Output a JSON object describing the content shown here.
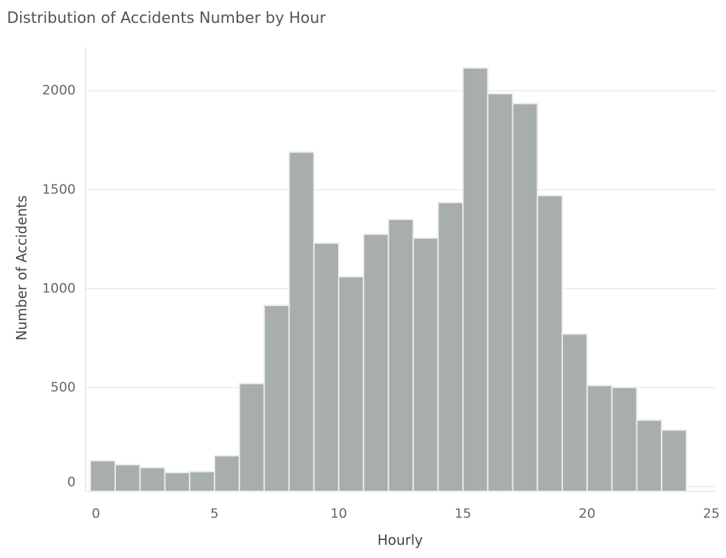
{
  "chart_data": {
    "type": "bar",
    "title": "Distribution of Accidents Number by Hour",
    "xlabel": "Hourly",
    "ylabel": "Number of Accidents",
    "bin_edges": [
      0,
      1,
      2,
      3,
      4,
      5,
      6,
      7,
      8,
      9,
      10,
      11,
      12,
      13,
      14,
      15,
      16,
      17,
      18,
      19,
      20,
      21,
      22,
      23,
      24
    ],
    "values": [
      130,
      110,
      95,
      70,
      75,
      155,
      520,
      915,
      1690,
      1230,
      1060,
      1275,
      1350,
      1255,
      1435,
      2115,
      1985,
      1935,
      1470,
      770,
      510,
      500,
      335,
      285
    ],
    "xlim": [
      -0.2,
      25.2
    ],
    "ylim": [
      -25,
      2220
    ],
    "xticks": [
      0,
      5,
      10,
      15,
      20,
      25
    ],
    "yticks": [
      0,
      500,
      1000,
      1500,
      2000
    ],
    "grid": true,
    "colors": {
      "bar_fill": "#a8aeae",
      "bar_edge": "#ececec",
      "grid": "#ebebeb",
      "axis": "#e6e6e6"
    }
  }
}
